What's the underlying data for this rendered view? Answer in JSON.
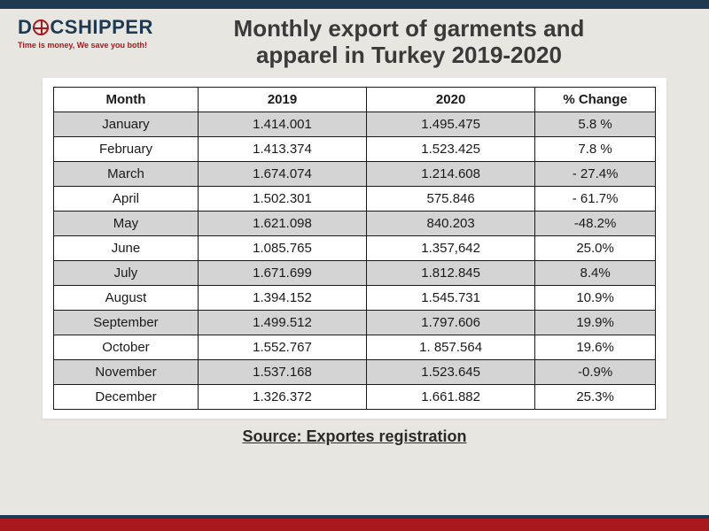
{
  "brand": {
    "name_pre": "D",
    "name_post": "CSHIPPER",
    "tagline": "Time is money, We save you both!"
  },
  "title_line1": "Monthly export of garments and",
  "title_line2": "apparel in Turkey 2019-2020",
  "table": {
    "columns": [
      "Month",
      "2019",
      "2020",
      "% Change"
    ],
    "rows": [
      [
        "January",
        "1.414.001",
        "1.495.475",
        "5.8 %"
      ],
      [
        "February",
        "1.413.374",
        "1.523.425",
        "7.8 %"
      ],
      [
        "March",
        "1.674.074",
        "1.214.608",
        "- 27.4%"
      ],
      [
        "April",
        "1.502.301",
        "575.846",
        "- 61.7%"
      ],
      [
        "May",
        "1.621.098",
        "840.203",
        "-48.2%"
      ],
      [
        "June",
        "1.085.765",
        "1.357,642",
        "25.0%"
      ],
      [
        "July",
        "1.671.699",
        "1.812.845",
        "8.4%"
      ],
      [
        "August",
        "1.394.152",
        "1.545.731",
        "10.9%"
      ],
      [
        "September",
        "1.499.512",
        "1.797.606",
        "19.9%"
      ],
      [
        "October",
        "1.552.767",
        "1. 857.564",
        "19.6%"
      ],
      [
        "November",
        "1.537.168",
        "1.523.645",
        "-0.9%"
      ],
      [
        "December",
        "1.326.372",
        "1.661.882",
        "25.3%"
      ]
    ]
  },
  "source": "Source: Exportes registration",
  "style": {
    "page_bg": "#e8e6e1",
    "top_bar": "#1e3a52",
    "bottom_bar_main": "#a8181c",
    "bottom_bar_accent": "#1e3a52",
    "table_border": "#1a1a1a",
    "row_shade": "#d4d4d4",
    "row_plain": "#ffffff",
    "title_color": "#3a3a3a",
    "title_fontsize": 26,
    "cell_fontsize": 15,
    "source_fontsize": 18,
    "logo_color": "#1e3a52",
    "accent_color": "#a8181c"
  }
}
